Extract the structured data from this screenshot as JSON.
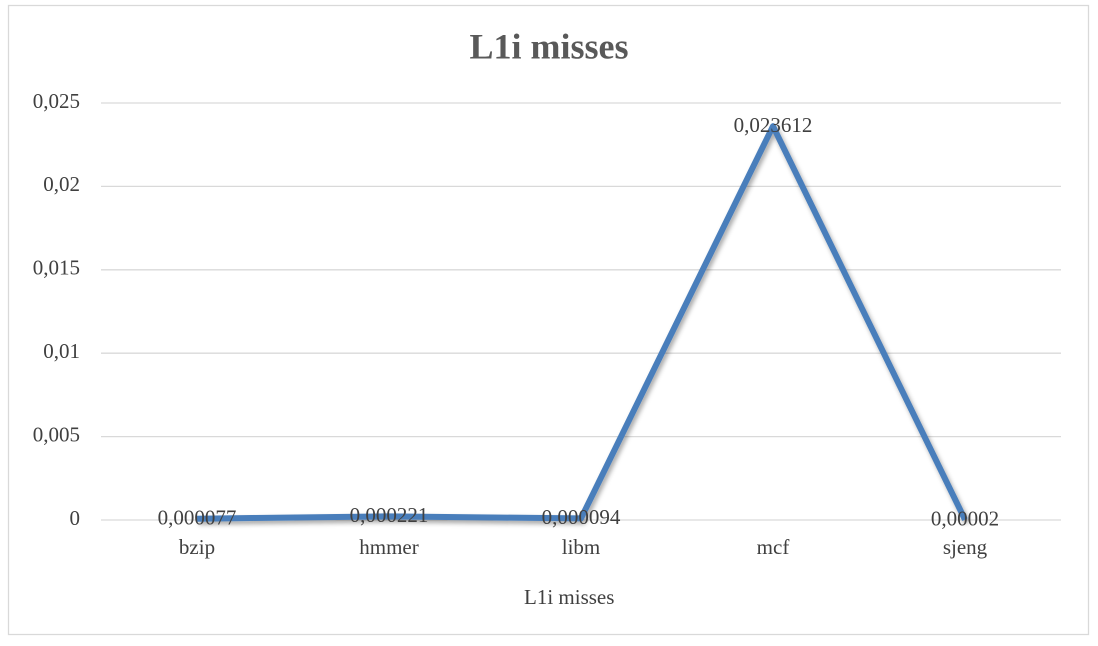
{
  "chart_data": {
    "type": "line",
    "title": "L1i misses",
    "categories": [
      "bzip",
      "hmmer",
      "libm",
      "mcf",
      "sjeng"
    ],
    "series": [
      {
        "name": "L1i misses",
        "color": "#4a7ebb",
        "values": [
          7.7e-05,
          0.000221,
          9.4e-05,
          0.023612,
          2e-05
        ],
        "value_labels": [
          "0,000077",
          "0,000221",
          "0,000094",
          "0,023612",
          "0,00002"
        ]
      }
    ],
    "ylim": [
      0,
      0.025
    ],
    "yticks": [
      0,
      {
        "value": 0.005,
        "label": "0,005"
      },
      {
        "value": 0.01,
        "label": "0,01"
      },
      {
        "value": 0.015,
        "label": "0,015"
      },
      {
        "value": 0.02,
        "label": "0,02"
      },
      {
        "value": 0.025,
        "label": "0,025"
      }
    ],
    "grid": true,
    "legend": "bottom"
  }
}
